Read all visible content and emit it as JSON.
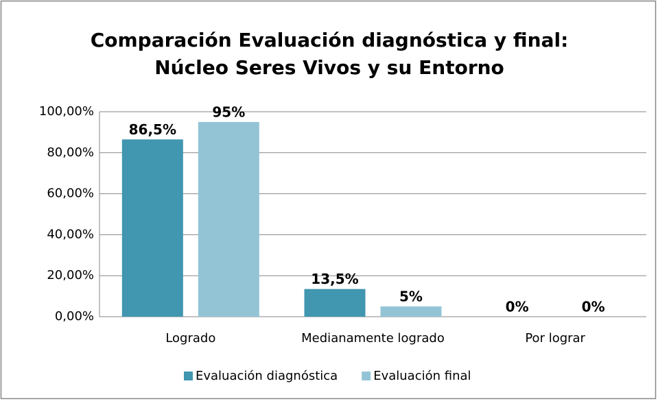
{
  "chart_data": {
    "type": "bar",
    "title": [
      "Comparación Evaluación diagnóstica y final:",
      "Núcleo Seres Vivos y su Entorno"
    ],
    "categories": [
      "Logrado",
      "Medianamente logrado",
      "Por lograr"
    ],
    "series": [
      {
        "name": "Evaluación diagnóstica",
        "color": "#4196b0",
        "values": [
          86.5,
          13.5,
          0
        ],
        "value_labels": [
          "86,5%",
          "13,5%",
          "0%"
        ]
      },
      {
        "name": "Evaluación final",
        "color": "#93c4d6",
        "values": [
          95,
          5,
          0
        ],
        "value_labels": [
          "95%",
          "5%",
          "0%"
        ]
      }
    ],
    "ylim": [
      0,
      100
    ],
    "yticks": [
      {
        "value": 0,
        "label": "0,00%"
      },
      {
        "value": 20,
        "label": "20,00%"
      },
      {
        "value": 40,
        "label": "40,00%"
      },
      {
        "value": 60,
        "label": "60,00%"
      },
      {
        "value": 80,
        "label": "80,00%"
      },
      {
        "value": 100,
        "label": "100,00%"
      }
    ],
    "grid": true,
    "legend": "bottom"
  }
}
